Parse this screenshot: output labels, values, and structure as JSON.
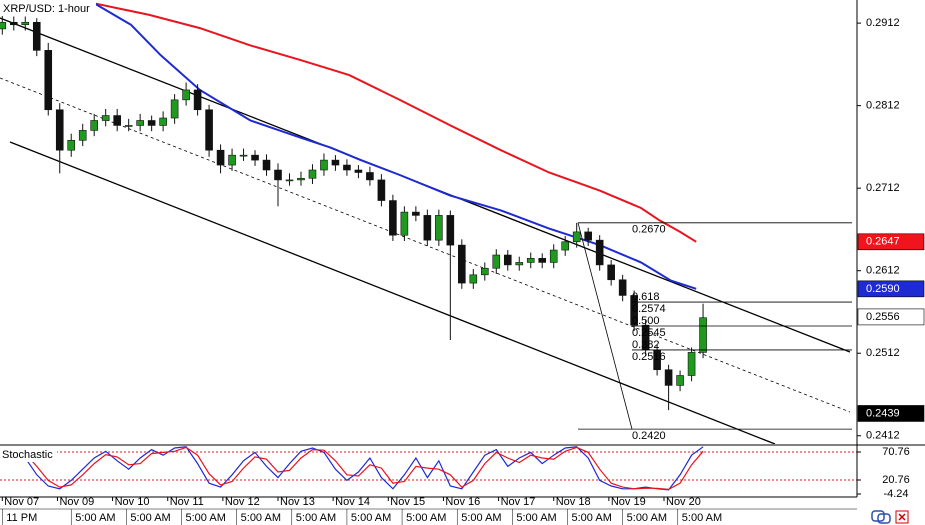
{
  "chart_data": {
    "type": "candlestick",
    "title": "XRP/USD: 1-hour",
    "x": [
      0,
      5,
      10,
      15,
      20,
      25,
      30,
      35,
      40,
      45,
      50,
      55,
      60,
      65,
      70,
      75,
      80,
      85,
      90,
      95,
      100,
      105,
      110,
      115,
      120,
      125,
      130,
      135,
      140,
      145,
      150,
      155,
      160,
      165,
      170,
      175,
      180,
      185,
      190,
      195,
      200,
      205,
      210,
      215,
      220,
      225,
      230,
      235,
      240,
      245,
      250,
      255,
      260,
      265,
      270,
      275,
      280,
      285,
      290,
      295,
      300,
      305
    ],
    "open": [
      0.2905,
      0.2913,
      0.291,
      0.2913,
      0.2879,
      0.2807,
      0.2758,
      0.277,
      0.2782,
      0.2794,
      0.28,
      0.2788,
      0.2788,
      0.2794,
      0.2788,
      0.2797,
      0.2819,
      0.2831,
      0.2807,
      0.2758,
      0.274,
      0.2752,
      0.2752,
      0.2746,
      0.2734,
      0.2722,
      0.2722,
      0.2724,
      0.2734,
      0.2746,
      0.274,
      0.2734,
      0.2731,
      0.2722,
      0.2697,
      0.2655,
      0.2683,
      0.2679,
      0.2649,
      0.2679,
      0.2643,
      0.2597,
      0.2607,
      0.2615,
      0.2631,
      0.2619,
      0.2622,
      0.2627,
      0.2622,
      0.2637,
      0.2647,
      0.2659,
      0.2649,
      0.2619,
      0.2601,
      0.2582,
      0.2546,
      0.2516,
      0.2492,
      0.2473,
      0.2485,
      0.2513
    ],
    "high": [
      0.2921,
      0.292,
      0.292,
      0.2918,
      0.2888,
      0.2815,
      0.2778,
      0.279,
      0.2802,
      0.2808,
      0.2808,
      0.2796,
      0.2802,
      0.28,
      0.2805,
      0.2826,
      0.284,
      0.2838,
      0.2813,
      0.2765,
      0.276,
      0.276,
      0.2758,
      0.2753,
      0.2742,
      0.273,
      0.2732,
      0.2741,
      0.2754,
      0.2752,
      0.2747,
      0.274,
      0.2738,
      0.2729,
      0.2704,
      0.269,
      0.269,
      0.2686,
      0.2686,
      0.2685,
      0.265,
      0.2614,
      0.2622,
      0.2638,
      0.2637,
      0.2629,
      0.2634,
      0.2633,
      0.2644,
      0.2654,
      0.267,
      0.2664,
      0.2655,
      0.2625,
      0.2607,
      0.2588,
      0.2552,
      0.2522,
      0.2498,
      0.2491,
      0.2519,
      0.2572
    ],
    "low": [
      0.2898,
      0.2903,
      0.2903,
      0.2872,
      0.28,
      0.273,
      0.275,
      0.2763,
      0.2775,
      0.2787,
      0.2781,
      0.2781,
      0.2781,
      0.2781,
      0.2781,
      0.279,
      0.2812,
      0.28,
      0.275,
      0.273,
      0.2733,
      0.2745,
      0.2739,
      0.2727,
      0.269,
      0.2715,
      0.2715,
      0.2717,
      0.2727,
      0.2733,
      0.2727,
      0.2724,
      0.2715,
      0.269,
      0.2648,
      0.2648,
      0.2672,
      0.2642,
      0.2642,
      0.2528,
      0.259,
      0.259,
      0.26,
      0.2608,
      0.2612,
      0.2612,
      0.2615,
      0.2615,
      0.2615,
      0.263,
      0.264,
      0.2642,
      0.2612,
      0.2594,
      0.2575,
      0.2539,
      0.2509,
      0.2485,
      0.2443,
      0.2466,
      0.2478,
      0.2506
    ],
    "close": [
      0.2913,
      0.291,
      0.2913,
      0.2879,
      0.2807,
      0.2758,
      0.277,
      0.2782,
      0.2794,
      0.28,
      0.2788,
      0.2788,
      0.2794,
      0.2788,
      0.2797,
      0.2819,
      0.2831,
      0.2807,
      0.2758,
      0.274,
      0.2752,
      0.2752,
      0.2746,
      0.2734,
      0.2722,
      0.2722,
      0.2724,
      0.2734,
      0.2746,
      0.274,
      0.2734,
      0.2731,
      0.2722,
      0.2697,
      0.2655,
      0.2683,
      0.2679,
      0.2649,
      0.2679,
      0.2643,
      0.2597,
      0.2607,
      0.2615,
      0.2631,
      0.2619,
      0.2622,
      0.2627,
      0.2622,
      0.2637,
      0.2647,
      0.2659,
      0.2649,
      0.2619,
      0.2601,
      0.2582,
      0.2546,
      0.2516,
      0.2492,
      0.2473,
      0.2485,
      0.2513,
      0.2555
    ],
    "up_color": "#1f9a1f",
    "down_color": "#111111",
    "xlim": [
      -1,
      372
    ],
    "ylim": [
      0.2402,
      0.294
    ],
    "yticks": [
      0.2912,
      0.2812,
      0.2712,
      0.2612,
      0.2512,
      0.2412
    ],
    "xticks": [
      {
        "value": 0,
        "label": "Nov 07"
      },
      {
        "value": 24,
        "label": "Nov 09"
      },
      {
        "value": 48,
        "label": "Nov 10"
      },
      {
        "value": 72,
        "label": "Nov 11"
      },
      {
        "value": 96,
        "label": "Nov 12"
      },
      {
        "value": 120,
        "label": "Nov 13"
      },
      {
        "value": 144,
        "label": "Nov 14"
      },
      {
        "value": 168,
        "label": "Nov 15"
      },
      {
        "value": 192,
        "label": "Nov 16"
      },
      {
        "value": 216,
        "label": "Nov 17"
      },
      {
        "value": 240,
        "label": "Nov 18"
      },
      {
        "value": 264,
        "label": "Nov 19"
      },
      {
        "value": 288,
        "label": "Nov 20"
      }
    ],
    "time_labels": [
      {
        "value": 0,
        "label": "11 PM"
      },
      {
        "value": 30,
        "label": "5:00 AM"
      },
      {
        "value": 54,
        "label": "5:00 AM"
      },
      {
        "value": 78,
        "label": "5:00 AM"
      },
      {
        "value": 102,
        "label": "5:00 AM"
      },
      {
        "value": 126,
        "label": "5:00 AM"
      },
      {
        "value": 150,
        "label": "5:00 AM"
      },
      {
        "value": 174,
        "label": "5:00 AM"
      },
      {
        "value": 198,
        "label": "5:00 AM"
      },
      {
        "value": 222,
        "label": "5:00 AM"
      },
      {
        "value": 246,
        "label": "5:00 AM"
      },
      {
        "value": 270,
        "label": "5:00 AM"
      },
      {
        "value": 294,
        "label": "5:00 AM"
      }
    ],
    "moving_averages": [
      {
        "color": "#e8141e",
        "x": [
          40,
          64,
          86,
          108,
          130,
          151,
          173,
          195,
          217,
          238,
          260,
          278,
          286,
          295,
          302
        ],
        "values": [
          0.2936,
          0.2922,
          0.2906,
          0.2885,
          0.2867,
          0.2849,
          0.2819,
          0.2788,
          0.2758,
          0.2731,
          0.2709,
          0.2688,
          0.2673,
          0.2659,
          0.2647
        ]
      },
      {
        "color": "#1e2ad2",
        "x": [
          40,
          56,
          69,
          86,
          108,
          130,
          143,
          156,
          173,
          195,
          217,
          238,
          260,
          278,
          291,
          302
        ],
        "values": [
          0.2936,
          0.291,
          0.2873,
          0.2831,
          0.2794,
          0.2773,
          0.2761,
          0.2746,
          0.2728,
          0.2703,
          0.2685,
          0.2663,
          0.2643,
          0.2622,
          0.26,
          0.259
        ]
      }
    ],
    "fib": {
      "high": {
        "value": 0.267,
        "label": "0.2670"
      },
      "low": {
        "value": 0.242,
        "label": "0.2420"
      },
      "levels": [
        {
          "ratio": "0.618",
          "value": 0.2574
        },
        {
          "ratio": "0.500",
          "value": 0.2545
        },
        {
          "ratio": "0.382",
          "value": 0.2516
        }
      ]
    },
    "price_markers": [
      {
        "value": 0.2647,
        "color": "#f0141e",
        "text_color": "#ffffff"
      },
      {
        "value": {
          "value": 0.259,
          "label": "0.2590"
        },
        "color": "#1e2ad2",
        "text_color": "#ffffff"
      },
      {
        "value": 0.2556,
        "color": "#ffffff",
        "text_color": "#000000"
      },
      {
        "value": 0.2439,
        "color": "#000000",
        "text_color": "#ffffff"
      }
    ],
    "stochastic": {
      "title": "Stochastic",
      "ylim": [
        -9.6,
        81.5
      ],
      "yticks": [
        70.76,
        20.76,
        -4.24
      ],
      "series": [
        {
          "color": "#1e2ad2",
          "values": [
            70,
            75,
            60,
            30,
            10,
            5,
            20,
            40,
            60,
            72,
            55,
            40,
            60,
            75,
            65,
            78,
            80,
            50,
            15,
            8,
            30,
            55,
            70,
            45,
            25,
            50,
            72,
            78,
            70,
            40,
            20,
            35,
            60,
            25,
            5,
            30,
            60,
            25,
            55,
            10,
            5,
            35,
            65,
            75,
            45,
            60,
            70,
            50,
            65,
            78,
            80,
            60,
            20,
            10,
            5,
            5,
            8,
            5,
            3,
            30,
            65,
            80
          ]
        },
        {
          "color": "#e8141e",
          "values": [
            65,
            72,
            68,
            45,
            20,
            8,
            12,
            30,
            50,
            66,
            62,
            48,
            50,
            68,
            70,
            72,
            79,
            65,
            32,
            12,
            18,
            42,
            62,
            58,
            35,
            38,
            60,
            75,
            74,
            55,
            30,
            28,
            48,
            42,
            15,
            18,
            45,
            42,
            40,
            30,
            8,
            20,
            50,
            70,
            60,
            52,
            65,
            60,
            58,
            72,
            79,
            70,
            40,
            15,
            8,
            5,
            6,
            6,
            4,
            15,
            48,
            72
          ]
        }
      ]
    }
  }
}
